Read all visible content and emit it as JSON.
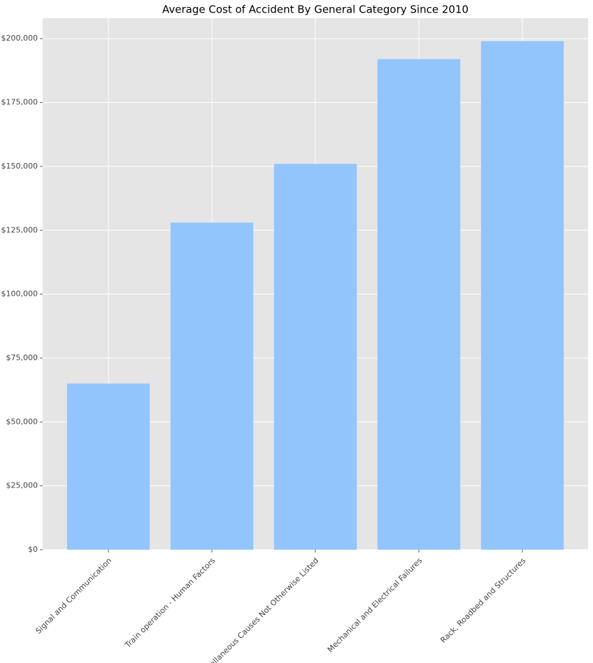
{
  "chart_data": {
    "type": "bar",
    "title": "Average Cost of Accident By General Category Since 2010",
    "categories": [
      "Signal and Communication",
      "Train operation - Human Factors",
      "Miscellaneous Causes Not Otherwise Listed",
      "Mechanical and Electrical Failures",
      "Rack, Roadbed and Structures"
    ],
    "values": [
      65000,
      128000,
      151000,
      192000,
      199000
    ],
    "color": "#93c5fd",
    "ylim": [
      0,
      208000
    ],
    "yticks": [
      {
        "value": 0,
        "label": "$0"
      },
      {
        "value": 25000,
        "label": "$25,000"
      },
      {
        "value": 50000,
        "label": "$50,000"
      },
      {
        "value": 75000,
        "label": "$75,000"
      },
      {
        "value": 100000,
        "label": "$100,000"
      },
      {
        "value": 125000,
        "label": "$125,000"
      },
      {
        "value": 150000,
        "label": "$150,000"
      },
      {
        "value": 175000,
        "label": "$175,000"
      },
      {
        "value": 200000,
        "label": "$200,000"
      }
    ],
    "grid": true
  }
}
